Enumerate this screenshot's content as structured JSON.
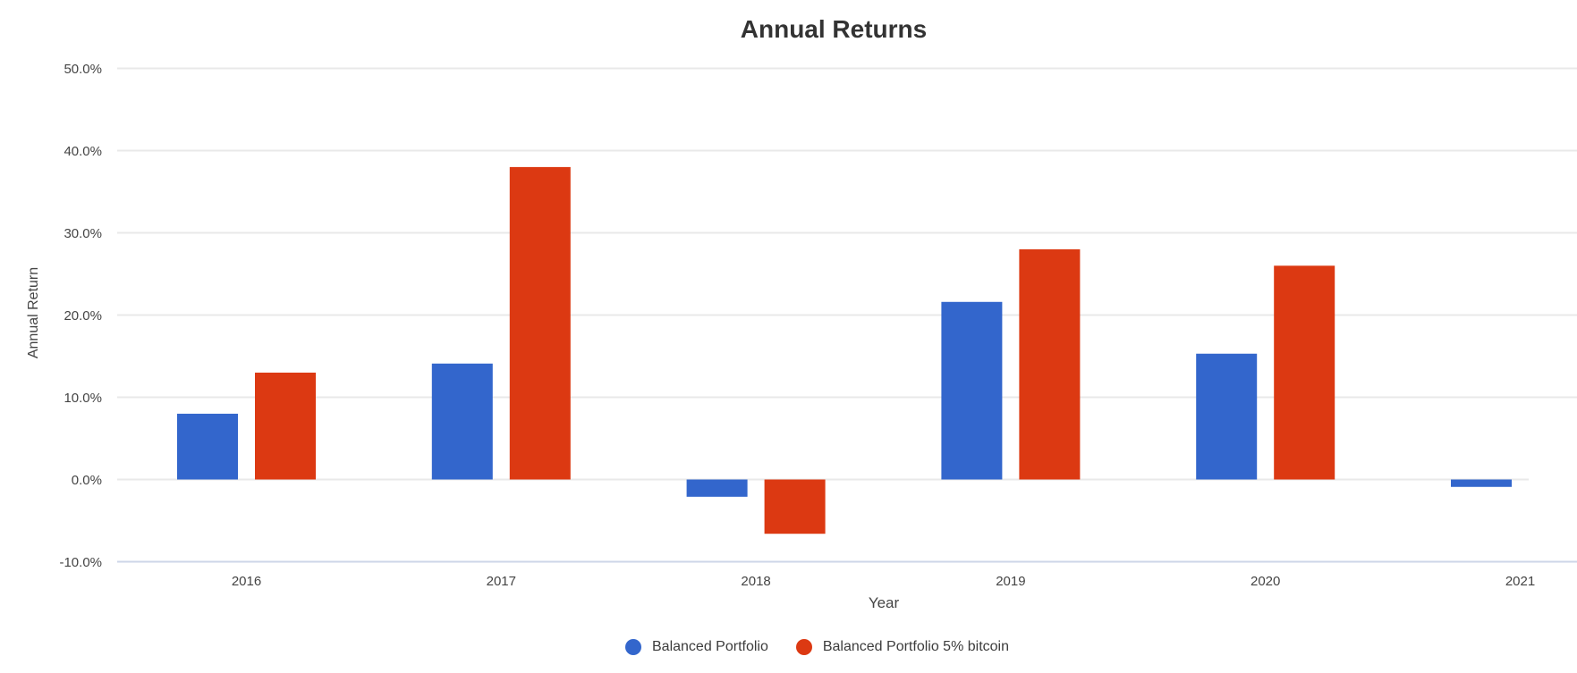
{
  "chart_data": {
    "type": "bar",
    "title": "Annual Returns",
    "xlabel": "Year",
    "ylabel": "Annual Return",
    "categories": [
      "2016",
      "2017",
      "2018",
      "2019",
      "2020",
      "2021"
    ],
    "series": [
      {
        "name": "Balanced Portfolio",
        "color": "#3366cc",
        "values": [
          8.0,
          14.1,
          -2.1,
          21.6,
          15.3,
          -0.9
        ]
      },
      {
        "name": "Balanced Portfolio 5% bitcoin",
        "color": "#dc3912",
        "values": [
          13.0,
          38.0,
          -6.6,
          28.0,
          26.0,
          0.0
        ]
      }
    ],
    "y_ticks": [
      50,
      40,
      30,
      20,
      10,
      0,
      -10
    ],
    "y_tick_labels": [
      "50.0%",
      "40.0%",
      "30.0%",
      "20.0%",
      "10.0%",
      "0.0%",
      "-10.0%"
    ],
    "ylim": [
      -10,
      50
    ],
    "grid": true,
    "legend_position": "bottom"
  },
  "colors": {
    "background": "#ffffff",
    "gridline": "#e9e9e9",
    "baseline": "#cdd6e8",
    "title_text": "#333333",
    "axis_text": "#444444",
    "legend_text": "#3c3c3c"
  }
}
